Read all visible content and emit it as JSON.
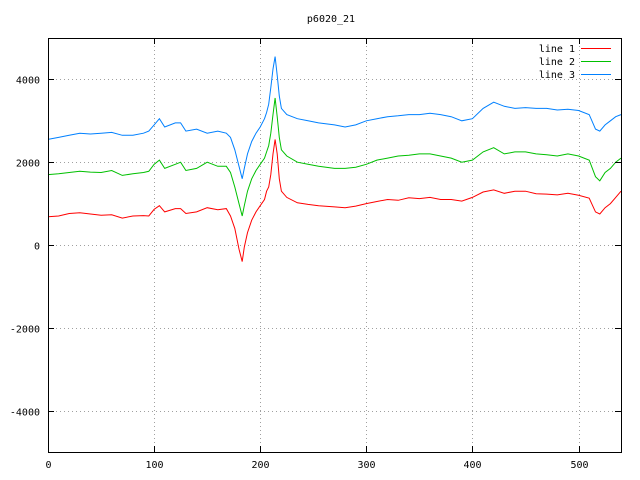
{
  "chart_data": {
    "type": "line",
    "title": "p6020_21",
    "xlabel": "",
    "ylabel": "",
    "xlim": [
      0,
      540
    ],
    "ylim": [
      -5000,
      5000
    ],
    "x_ticks": [
      0,
      100,
      200,
      300,
      400,
      500
    ],
    "y_ticks": [
      -4000,
      -2000,
      0,
      2000,
      4000
    ],
    "grid": true,
    "legend_position": "top-right",
    "series": [
      {
        "name": "line 1",
        "color": "#ff0000",
        "points": [
          [
            0,
            680
          ],
          [
            10,
            700
          ],
          [
            20,
            760
          ],
          [
            30,
            780
          ],
          [
            40,
            750
          ],
          [
            50,
            720
          ],
          [
            60,
            730
          ],
          [
            70,
            650
          ],
          [
            80,
            700
          ],
          [
            90,
            710
          ],
          [
            95,
            700
          ],
          [
            100,
            860
          ],
          [
            105,
            950
          ],
          [
            110,
            800
          ],
          [
            120,
            880
          ],
          [
            125,
            880
          ],
          [
            130,
            760
          ],
          [
            140,
            800
          ],
          [
            150,
            900
          ],
          [
            160,
            850
          ],
          [
            168,
            880
          ],
          [
            172,
            700
          ],
          [
            176,
            400
          ],
          [
            180,
            -100
          ],
          [
            183,
            -400
          ],
          [
            185,
            -50
          ],
          [
            188,
            300
          ],
          [
            192,
            600
          ],
          [
            196,
            800
          ],
          [
            200,
            950
          ],
          [
            204,
            1100
          ],
          [
            206,
            1300
          ],
          [
            208,
            1400
          ],
          [
            210,
            1700
          ],
          [
            212,
            2200
          ],
          [
            214,
            2550
          ],
          [
            216,
            2200
          ],
          [
            218,
            1600
          ],
          [
            220,
            1300
          ],
          [
            225,
            1150
          ],
          [
            235,
            1020
          ],
          [
            245,
            980
          ],
          [
            255,
            950
          ],
          [
            270,
            920
          ],
          [
            280,
            900
          ],
          [
            290,
            940
          ],
          [
            300,
            1000
          ],
          [
            310,
            1050
          ],
          [
            320,
            1100
          ],
          [
            330,
            1080
          ],
          [
            340,
            1140
          ],
          [
            350,
            1120
          ],
          [
            360,
            1150
          ],
          [
            370,
            1100
          ],
          [
            380,
            1100
          ],
          [
            390,
            1060
          ],
          [
            400,
            1150
          ],
          [
            410,
            1280
          ],
          [
            420,
            1330
          ],
          [
            430,
            1250
          ],
          [
            440,
            1300
          ],
          [
            450,
            1300
          ],
          [
            460,
            1240
          ],
          [
            470,
            1230
          ],
          [
            480,
            1210
          ],
          [
            490,
            1250
          ],
          [
            500,
            1200
          ],
          [
            510,
            1130
          ],
          [
            516,
            800
          ],
          [
            520,
            750
          ],
          [
            525,
            900
          ],
          [
            530,
            1000
          ],
          [
            535,
            1150
          ],
          [
            540,
            1300
          ]
        ]
      },
      {
        "name": "line 2",
        "color": "#00c000",
        "points": [
          [
            0,
            1700
          ],
          [
            10,
            1720
          ],
          [
            20,
            1750
          ],
          [
            30,
            1780
          ],
          [
            40,
            1760
          ],
          [
            50,
            1750
          ],
          [
            60,
            1800
          ],
          [
            70,
            1680
          ],
          [
            80,
            1720
          ],
          [
            90,
            1750
          ],
          [
            95,
            1780
          ],
          [
            100,
            1950
          ],
          [
            105,
            2050
          ],
          [
            110,
            1850
          ],
          [
            120,
            1950
          ],
          [
            125,
            2000
          ],
          [
            130,
            1800
          ],
          [
            140,
            1850
          ],
          [
            150,
            2000
          ],
          [
            160,
            1900
          ],
          [
            168,
            1900
          ],
          [
            172,
            1750
          ],
          [
            176,
            1400
          ],
          [
            180,
            1000
          ],
          [
            183,
            700
          ],
          [
            185,
            950
          ],
          [
            188,
            1300
          ],
          [
            192,
            1600
          ],
          [
            196,
            1800
          ],
          [
            200,
            1950
          ],
          [
            204,
            2100
          ],
          [
            206,
            2250
          ],
          [
            208,
            2400
          ],
          [
            210,
            2700
          ],
          [
            212,
            3150
          ],
          [
            214,
            3550
          ],
          [
            216,
            3100
          ],
          [
            218,
            2600
          ],
          [
            220,
            2300
          ],
          [
            225,
            2150
          ],
          [
            235,
            2000
          ],
          [
            245,
            1950
          ],
          [
            255,
            1900
          ],
          [
            270,
            1850
          ],
          [
            280,
            1850
          ],
          [
            290,
            1880
          ],
          [
            300,
            1950
          ],
          [
            310,
            2050
          ],
          [
            320,
            2100
          ],
          [
            330,
            2150
          ],
          [
            340,
            2170
          ],
          [
            350,
            2200
          ],
          [
            360,
            2200
          ],
          [
            370,
            2150
          ],
          [
            380,
            2100
          ],
          [
            390,
            2000
          ],
          [
            400,
            2050
          ],
          [
            410,
            2250
          ],
          [
            420,
            2350
          ],
          [
            430,
            2200
          ],
          [
            440,
            2250
          ],
          [
            450,
            2250
          ],
          [
            460,
            2200
          ],
          [
            470,
            2180
          ],
          [
            480,
            2150
          ],
          [
            490,
            2200
          ],
          [
            500,
            2150
          ],
          [
            510,
            2050
          ],
          [
            516,
            1650
          ],
          [
            520,
            1550
          ],
          [
            525,
            1750
          ],
          [
            530,
            1850
          ],
          [
            535,
            2000
          ],
          [
            540,
            2100
          ]
        ]
      },
      {
        "name": "line 3",
        "color": "#0080ff",
        "points": [
          [
            0,
            2550
          ],
          [
            10,
            2600
          ],
          [
            20,
            2650
          ],
          [
            30,
            2700
          ],
          [
            40,
            2680
          ],
          [
            50,
            2700
          ],
          [
            60,
            2720
          ],
          [
            70,
            2650
          ],
          [
            80,
            2650
          ],
          [
            90,
            2700
          ],
          [
            95,
            2750
          ],
          [
            100,
            2900
          ],
          [
            105,
            3050
          ],
          [
            110,
            2850
          ],
          [
            120,
            2950
          ],
          [
            125,
            2950
          ],
          [
            130,
            2750
          ],
          [
            140,
            2800
          ],
          [
            150,
            2700
          ],
          [
            160,
            2750
          ],
          [
            168,
            2700
          ],
          [
            172,
            2600
          ],
          [
            176,
            2300
          ],
          [
            180,
            1900
          ],
          [
            183,
            1600
          ],
          [
            185,
            1850
          ],
          [
            188,
            2200
          ],
          [
            192,
            2500
          ],
          [
            196,
            2700
          ],
          [
            200,
            2850
          ],
          [
            204,
            3050
          ],
          [
            206,
            3200
          ],
          [
            208,
            3400
          ],
          [
            210,
            3800
          ],
          [
            212,
            4250
          ],
          [
            214,
            4550
          ],
          [
            216,
            4100
          ],
          [
            218,
            3600
          ],
          [
            220,
            3300
          ],
          [
            225,
            3150
          ],
          [
            235,
            3050
          ],
          [
            245,
            3000
          ],
          [
            255,
            2950
          ],
          [
            270,
            2900
          ],
          [
            280,
            2850
          ],
          [
            290,
            2900
          ],
          [
            300,
            3000
          ],
          [
            310,
            3050
          ],
          [
            320,
            3100
          ],
          [
            330,
            3120
          ],
          [
            340,
            3150
          ],
          [
            350,
            3150
          ],
          [
            360,
            3180
          ],
          [
            370,
            3150
          ],
          [
            380,
            3100
          ],
          [
            390,
            3000
          ],
          [
            400,
            3050
          ],
          [
            410,
            3300
          ],
          [
            420,
            3450
          ],
          [
            430,
            3350
          ],
          [
            440,
            3300
          ],
          [
            450,
            3320
          ],
          [
            460,
            3300
          ],
          [
            470,
            3300
          ],
          [
            480,
            3260
          ],
          [
            490,
            3280
          ],
          [
            500,
            3250
          ],
          [
            510,
            3150
          ],
          [
            516,
            2800
          ],
          [
            520,
            2750
          ],
          [
            525,
            2900
          ],
          [
            530,
            3000
          ],
          [
            535,
            3100
          ],
          [
            540,
            3150
          ]
        ]
      }
    ]
  }
}
